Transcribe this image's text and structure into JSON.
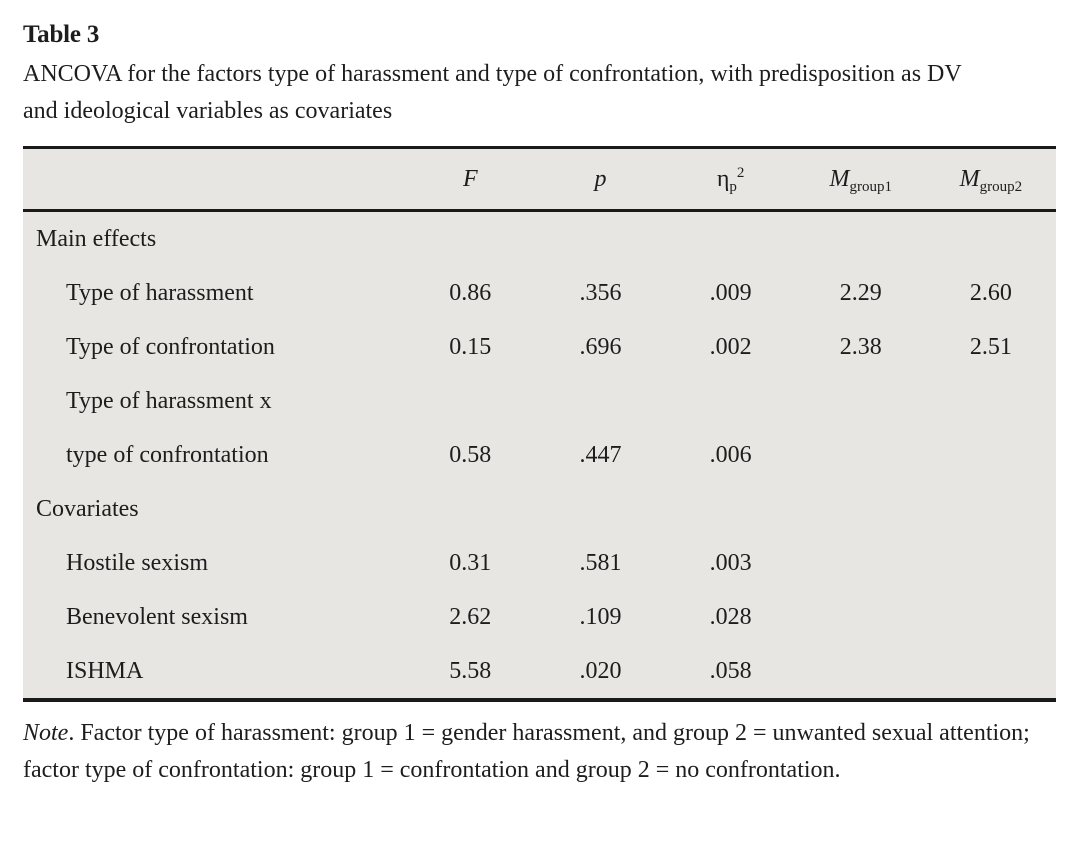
{
  "title": "Table 3",
  "caption": "ANCOVA for the factors type of harassment and type of confrontation, with predisposition as DV and ideological variables as covariates",
  "colors": {
    "table_background": "#e7e6e3",
    "border": "#1a1a1a",
    "text": "#1d1d1d",
    "page_background": "#ffffff"
  },
  "header": {
    "f": "F",
    "p": "p",
    "eta": {
      "base": "η",
      "sub": "p",
      "sup": "2"
    },
    "m1": {
      "base": "M",
      "sub": "group1"
    },
    "m2": {
      "base": "M",
      "sub": "group2"
    }
  },
  "table": {
    "rows": [
      {
        "label": "Main effects",
        "indent": false,
        "values": [
          "",
          "",
          "",
          "",
          ""
        ]
      },
      {
        "label": "Type of harassment",
        "indent": true,
        "values": [
          "0.86",
          ".356",
          ".009",
          "2.29",
          "2.60"
        ]
      },
      {
        "label": "Type of confrontation",
        "indent": true,
        "values": [
          "0.15",
          ".696",
          ".002",
          "2.38",
          "2.51"
        ]
      },
      {
        "label": "Type of harassment x",
        "indent": true,
        "values": [
          "",
          "",
          "",
          "",
          ""
        ]
      },
      {
        "label": "type of confrontation",
        "indent": true,
        "values": [
          "0.58",
          ".447",
          ".006",
          "",
          ""
        ]
      },
      {
        "label": "Covariates",
        "indent": false,
        "values": [
          "",
          "",
          "",
          "",
          ""
        ]
      },
      {
        "label": "Hostile sexism",
        "indent": true,
        "values": [
          "0.31",
          ".581",
          ".003",
          "",
          ""
        ]
      },
      {
        "label": "Benevolent sexism",
        "indent": true,
        "values": [
          "2.62",
          ".109",
          ".028",
          "",
          ""
        ]
      },
      {
        "label": "ISHMA",
        "indent": true,
        "values": [
          "5.58",
          ".020",
          ".058",
          "",
          ""
        ]
      }
    ]
  },
  "note": {
    "lead": "Note",
    "text": ". Factor type of harassment: group 1 = gender harassment, and group 2 = unwanted sexual attention; factor type of confrontation: group 1 = confrontation and group 2 = no confrontation."
  }
}
